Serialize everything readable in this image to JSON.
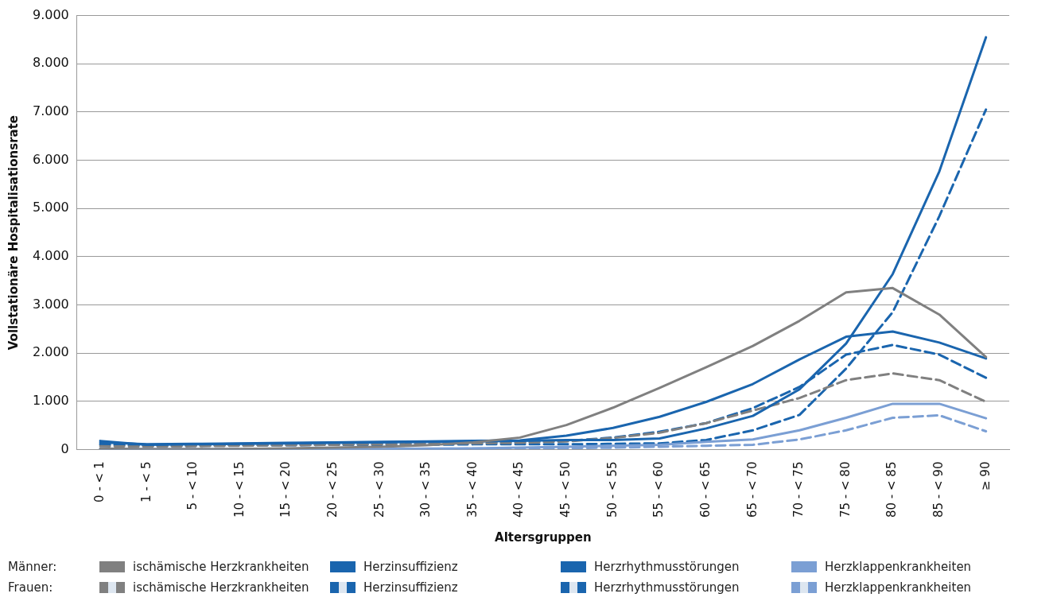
{
  "chart_data": {
    "type": "line",
    "xlabel": "Altersgruppen",
    "ylabel": "Vollstationäre Hospitalisationsrate",
    "categories": [
      "0 - < 1",
      "1 - < 5",
      "5 - < 10",
      "10 - < 15",
      "15 - < 20",
      "20 - < 25",
      "25 - < 30",
      "30 - < 35",
      "35 - < 40",
      "40 - < 45",
      "45 - < 50",
      "50 - < 55",
      "55 - < 60",
      "60 - < 65",
      "65 - < 70",
      "70 - < 75",
      "75 - < 80",
      "80 - < 85",
      "85 - < 90",
      "≥ 90"
    ],
    "ylim": [
      0,
      9000
    ],
    "yticks": [
      {
        "value": 0,
        "label": "0"
      },
      {
        "value": 1000,
        "label": "1.000"
      },
      {
        "value": 2000,
        "label": "2.000"
      },
      {
        "value": 3000,
        "label": "3.000"
      },
      {
        "value": 4000,
        "label": "4.000"
      },
      {
        "value": 5000,
        "label": "5.000"
      },
      {
        "value": 6000,
        "label": "6.000"
      },
      {
        "value": 7000,
        "label": "7.000"
      },
      {
        "value": 8000,
        "label": "8.000"
      },
      {
        "value": 9000,
        "label": "9.000"
      }
    ],
    "grid": "y",
    "legend": "bottom",
    "marker": "none",
    "annotations": [
      "Männer:",
      "Frauen:"
    ],
    "series": [
      {
        "name": "ischämische Herzkrankheiten",
        "color": "#808080",
        "line_style": "solid",
        "values": [
          20,
          10,
          10,
          15,
          25,
          40,
          60,
          90,
          150,
          250,
          510,
          870,
          1280,
          1710,
          2150,
          2670,
          3260,
          3350,
          2800,
          1920
        ]
      },
      {
        "name": "Herzinsuffizienz",
        "color": "#1a65ae",
        "line_style": "solid",
        "values": [
          180,
          100,
          110,
          120,
          130,
          140,
          150,
          160,
          170,
          180,
          200,
          200,
          230,
          440,
          700,
          1250,
          2200,
          3640,
          5770,
          8550
        ]
      },
      {
        "name": "Herzrhythmusstörungen",
        "color": "#1a65ae",
        "line_style": "solid",
        "values": [
          150,
          110,
          120,
          130,
          140,
          150,
          160,
          170,
          180,
          190,
          290,
          450,
          680,
          990,
          1360,
          1870,
          2340,
          2450,
          2220,
          1890
        ]
      },
      {
        "name": "Herzklappenkrankheiten",
        "color": "#7b9fd4",
        "line_style": "solid",
        "values": [
          20,
          10,
          10,
          10,
          10,
          10,
          15,
          20,
          25,
          40,
          60,
          80,
          100,
          160,
          210,
          400,
          660,
          950,
          950,
          650
        ]
      },
      {
        "name": "ischämische Herzkrankheiten",
        "color": "#808080",
        "line_style": "dashed",
        "values": [
          70,
          60,
          70,
          80,
          90,
          100,
          110,
          120,
          130,
          140,
          170,
          240,
          350,
          550,
          810,
          1070,
          1440,
          1580,
          1440,
          990
        ]
      },
      {
        "name": "Herzinsuffizienz",
        "color": "#1a65ae",
        "line_style": "dashed",
        "values": [
          120,
          80,
          80,
          90,
          90,
          100,
          100,
          100,
          110,
          110,
          110,
          120,
          130,
          200,
          400,
          720,
          1680,
          2850,
          4840,
          7050
        ]
      },
      {
        "name": "Herzrhythmusstörungen",
        "color": "#1a65ae",
        "line_style": "dashed",
        "values": [
          100,
          80,
          90,
          90,
          100,
          110,
          120,
          130,
          140,
          150,
          180,
          250,
          370,
          550,
          860,
          1300,
          1970,
          2170,
          1970,
          1490
        ]
      },
      {
        "name": "Herzklappenkrankheiten",
        "color": "#7b9fd4",
        "line_style": "dashed",
        "values": [
          20,
          10,
          10,
          10,
          10,
          10,
          10,
          15,
          20,
          30,
          30,
          40,
          60,
          80,
          100,
          210,
          400,
          660,
          710,
          380
        ]
      }
    ]
  }
}
